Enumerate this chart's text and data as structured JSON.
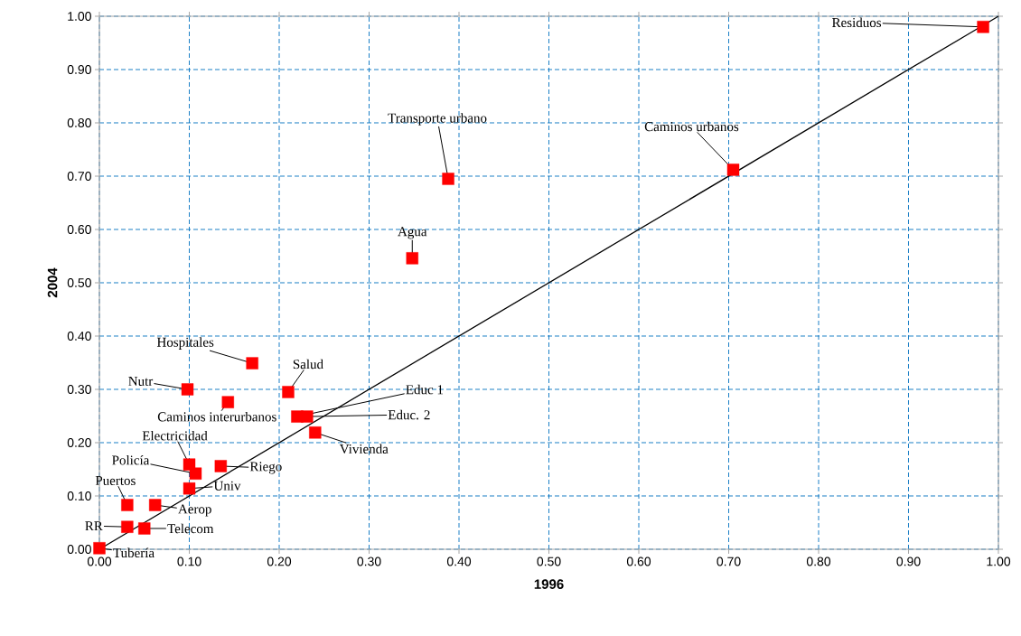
{
  "chart_data": {
    "type": "scatter",
    "xlabel": "1996",
    "ylabel": "2004",
    "xlim": [
      0,
      1
    ],
    "ylim": [
      0,
      1
    ],
    "xticks": [
      {
        "value": 0,
        "label": "0.00"
      },
      {
        "value": 0.1,
        "label": "0.10"
      },
      {
        "value": 0.2,
        "label": "0.20"
      },
      {
        "value": 0.3,
        "label": "0.30"
      },
      {
        "value": 0.4,
        "label": "0.40"
      },
      {
        "value": 0.5,
        "label": "0.50"
      },
      {
        "value": 0.6,
        "label": "0.60"
      },
      {
        "value": 0.7,
        "label": "0.70"
      },
      {
        "value": 0.8,
        "label": "0.80"
      },
      {
        "value": 0.9,
        "label": "0.90"
      },
      {
        "value": 1,
        "label": "1.00"
      }
    ],
    "yticks": [
      {
        "value": 0,
        "label": "0.00"
      },
      {
        "value": 0.1,
        "label": "0.10"
      },
      {
        "value": 0.2,
        "label": "0.20"
      },
      {
        "value": 0.3,
        "label": "0.30"
      },
      {
        "value": 0.4,
        "label": "0.40"
      },
      {
        "value": 0.5,
        "label": "0.50"
      },
      {
        "value": 0.6,
        "label": "0.60"
      },
      {
        "value": 0.7,
        "label": "0.70"
      },
      {
        "value": 0.8,
        "label": "0.80"
      },
      {
        "value": 0.9,
        "label": "0.90"
      },
      {
        "value": 1,
        "label": "1.00"
      }
    ],
    "grid": true,
    "marker": "square",
    "series": [
      {
        "color": "#ff0000",
        "x": [
          0.983,
          0.705,
          0.388,
          0.348,
          0.17,
          0.21,
          0.098,
          0.143,
          0.22,
          0.231,
          0.24,
          0.1,
          0.107,
          0.135,
          0.1,
          0.031,
          0.062,
          0.031,
          0.05,
          0.0
        ],
        "values": [
          0.98,
          0.712,
          0.695,
          0.546,
          0.349,
          0.295,
          0.3,
          0.276,
          0.249,
          0.249,
          0.219,
          0.159,
          0.142,
          0.156,
          0.114,
          0.083,
          0.083,
          0.042,
          0.039,
          0.002
        ]
      },
      {
        "type": "line",
        "color": "#000000",
        "marker": "none",
        "x": [
          0,
          1
        ],
        "values": [
          0,
          1
        ]
      }
    ],
    "annotations": [
      {
        "text": "Residuos",
        "x": 0.983,
        "y": 0.98
      },
      {
        "text": "Caminos urbanos",
        "x": 0.705,
        "y": 0.712
      },
      {
        "text": "Transporte urbano",
        "x": 0.388,
        "y": 0.695
      },
      {
        "text": "Agua",
        "x": 0.348,
        "y": 0.546
      },
      {
        "text": "Hospitales",
        "x": 0.17,
        "y": 0.349
      },
      {
        "text": "Salud",
        "x": 0.21,
        "y": 0.295
      },
      {
        "text": "Nutr",
        "x": 0.098,
        "y": 0.3
      },
      {
        "text": "Caminos interurbanos",
        "x": 0.143,
        "y": 0.276
      },
      {
        "text": "Educ 1",
        "x": 0.22,
        "y": 0.249
      },
      {
        "text": "Educ. 2",
        "x": 0.231,
        "y": 0.249
      },
      {
        "text": "Vivienda",
        "x": 0.24,
        "y": 0.219
      },
      {
        "text": "Electricidad",
        "x": 0.1,
        "y": 0.159
      },
      {
        "text": "Policía",
        "x": 0.107,
        "y": 0.142
      },
      {
        "text": "Riego",
        "x": 0.135,
        "y": 0.156
      },
      {
        "text": "Univ",
        "x": 0.1,
        "y": 0.114
      },
      {
        "text": "Puertos",
        "x": 0.031,
        "y": 0.083
      },
      {
        "text": "Aerop",
        "x": 0.062,
        "y": 0.083
      },
      {
        "text": "RR",
        "x": 0.031,
        "y": 0.042
      },
      {
        "text": "Telecom",
        "x": 0.05,
        "y": 0.039
      },
      {
        "text": "Tubería",
        "x": 0.0,
        "y": 0.002
      }
    ]
  }
}
